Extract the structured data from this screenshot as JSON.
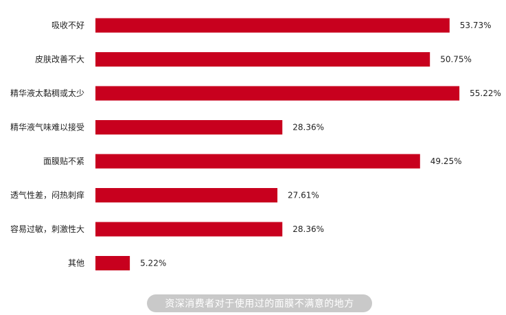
{
  "chart_data": {
    "type": "bar",
    "orientation": "horizontal",
    "categories": [
      "吸收不好",
      "皮肤改善不大",
      "精华液太黏稠或太少",
      "精华液气味难以接受",
      "面膜贴不紧",
      "透气性差，闷热刺痒",
      "容易过敏，刺激性大",
      "其他"
    ],
    "values": [
      53.73,
      50.75,
      55.22,
      28.36,
      49.25,
      27.61,
      28.36,
      5.22
    ],
    "value_labels": [
      "53.73%",
      "50.75%",
      "55.22%",
      "28.36%",
      "49.25%",
      "27.61%",
      "28.36%",
      "5.22%"
    ],
    "xlim": [
      0,
      60
    ],
    "grid": false,
    "bar_color": "#c8001e",
    "title": "",
    "xlabel": "",
    "ylabel": ""
  },
  "caption": "资深消费者对于使用过的面膜不满意的地方"
}
